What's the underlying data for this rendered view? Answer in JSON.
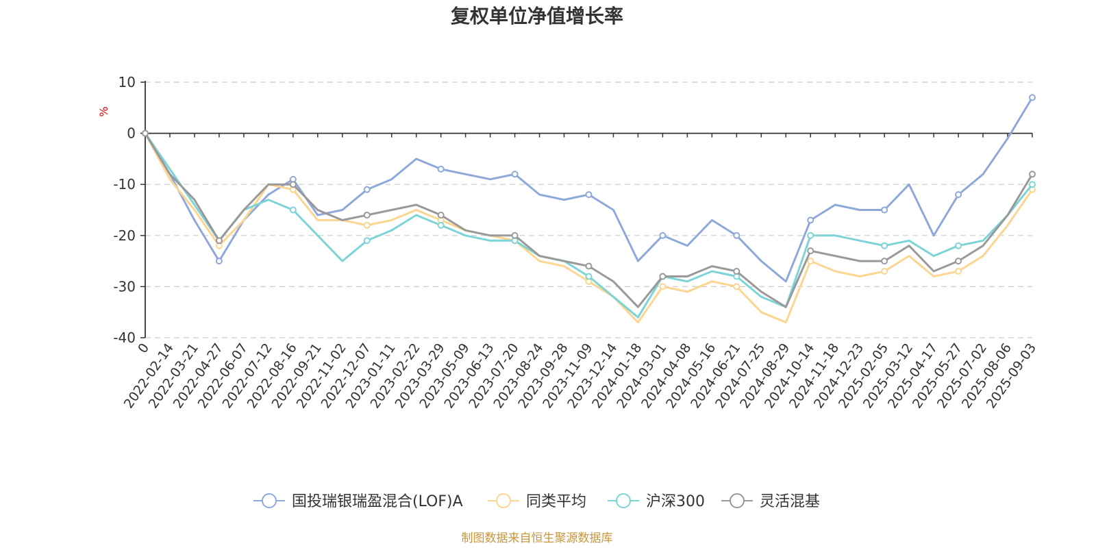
{
  "chart_data": {
    "type": "line",
    "title": "复权单位净值增长率",
    "ylabel": "%",
    "ylim": [
      -40,
      10
    ],
    "yticks": [
      10,
      0,
      -10,
      -20,
      -30,
      -40
    ],
    "grid": true,
    "legend_position": "bottom",
    "x": [
      "0",
      "2022-02-14",
      "2022-03-21",
      "2022-04-27",
      "2022-06-07",
      "2022-07-12",
      "2022-08-16",
      "2022-09-21",
      "2022-11-02",
      "2022-12-07",
      "2023-01-11",
      "2023-02-22",
      "2023-03-29",
      "2023-05-09",
      "2023-06-13",
      "2023-07-20",
      "2023-08-24",
      "2023-09-28",
      "2023-11-09",
      "2023-12-14",
      "2024-01-18",
      "2024-03-01",
      "2024-04-08",
      "2024-05-16",
      "2024-06-21",
      "2024-07-25",
      "2024-08-29",
      "2024-10-14",
      "2024-11-18",
      "2024-12-23",
      "2025-02-05",
      "2025-03-12",
      "2025-04-17",
      "2025-05-27",
      "2025-07-02",
      "2025-08-06",
      "2025-09-03"
    ],
    "series": [
      {
        "name": "国投瑞银瑞盈混合(LOF)A",
        "color": "#8fa8db",
        "values": [
          0,
          -8,
          -17,
          -25,
          -17,
          -12,
          -9,
          -16,
          -15,
          -11,
          -9,
          -5,
          -7,
          -8,
          -9,
          -8,
          -12,
          -13,
          -12,
          -15,
          -25,
          -20,
          -22,
          -17,
          -20,
          -25,
          -29,
          -17,
          -14,
          -15,
          -15,
          -10,
          -20,
          -12,
          -8,
          -1,
          7
        ]
      },
      {
        "name": "同类平均",
        "color": "#fcd590",
        "values": [
          0,
          -9,
          -15,
          -22,
          -17,
          -10,
          -11,
          -17,
          -17,
          -18,
          -17,
          -15,
          -17,
          -19,
          -20,
          -21,
          -25,
          -26,
          -29,
          -32,
          -37,
          -30,
          -31,
          -29,
          -30,
          -35,
          -37,
          -25,
          -27,
          -28,
          -27,
          -24,
          -28,
          -27,
          -24,
          -18,
          -11
        ]
      },
      {
        "name": "沪深300",
        "color": "#7dd4d6",
        "values": [
          0,
          -7,
          -14,
          -21,
          -15,
          -13,
          -15,
          -20,
          -25,
          -21,
          -19,
          -16,
          -18,
          -20,
          -21,
          -21,
          -24,
          -25,
          -28,
          -32,
          -36,
          -28,
          -29,
          -27,
          -28,
          -32,
          -34,
          -20,
          -20,
          -21,
          -22,
          -21,
          -24,
          -22,
          -21,
          -16,
          -10
        ]
      },
      {
        "name": "灵活混基",
        "color": "#999999",
        "values": [
          0,
          -8,
          -13,
          -21,
          -15,
          -10,
          -10,
          -15,
          -17,
          -16,
          -15,
          -14,
          -16,
          -19,
          -20,
          -20,
          -24,
          -25,
          -26,
          -29,
          -34,
          -28,
          -28,
          -26,
          -27,
          -31,
          -34,
          -23,
          -24,
          -25,
          -25,
          -22,
          -27,
          -25,
          -22,
          -16,
          -8
        ]
      }
    ]
  },
  "source": "制图数据来自恒生聚源数据库"
}
